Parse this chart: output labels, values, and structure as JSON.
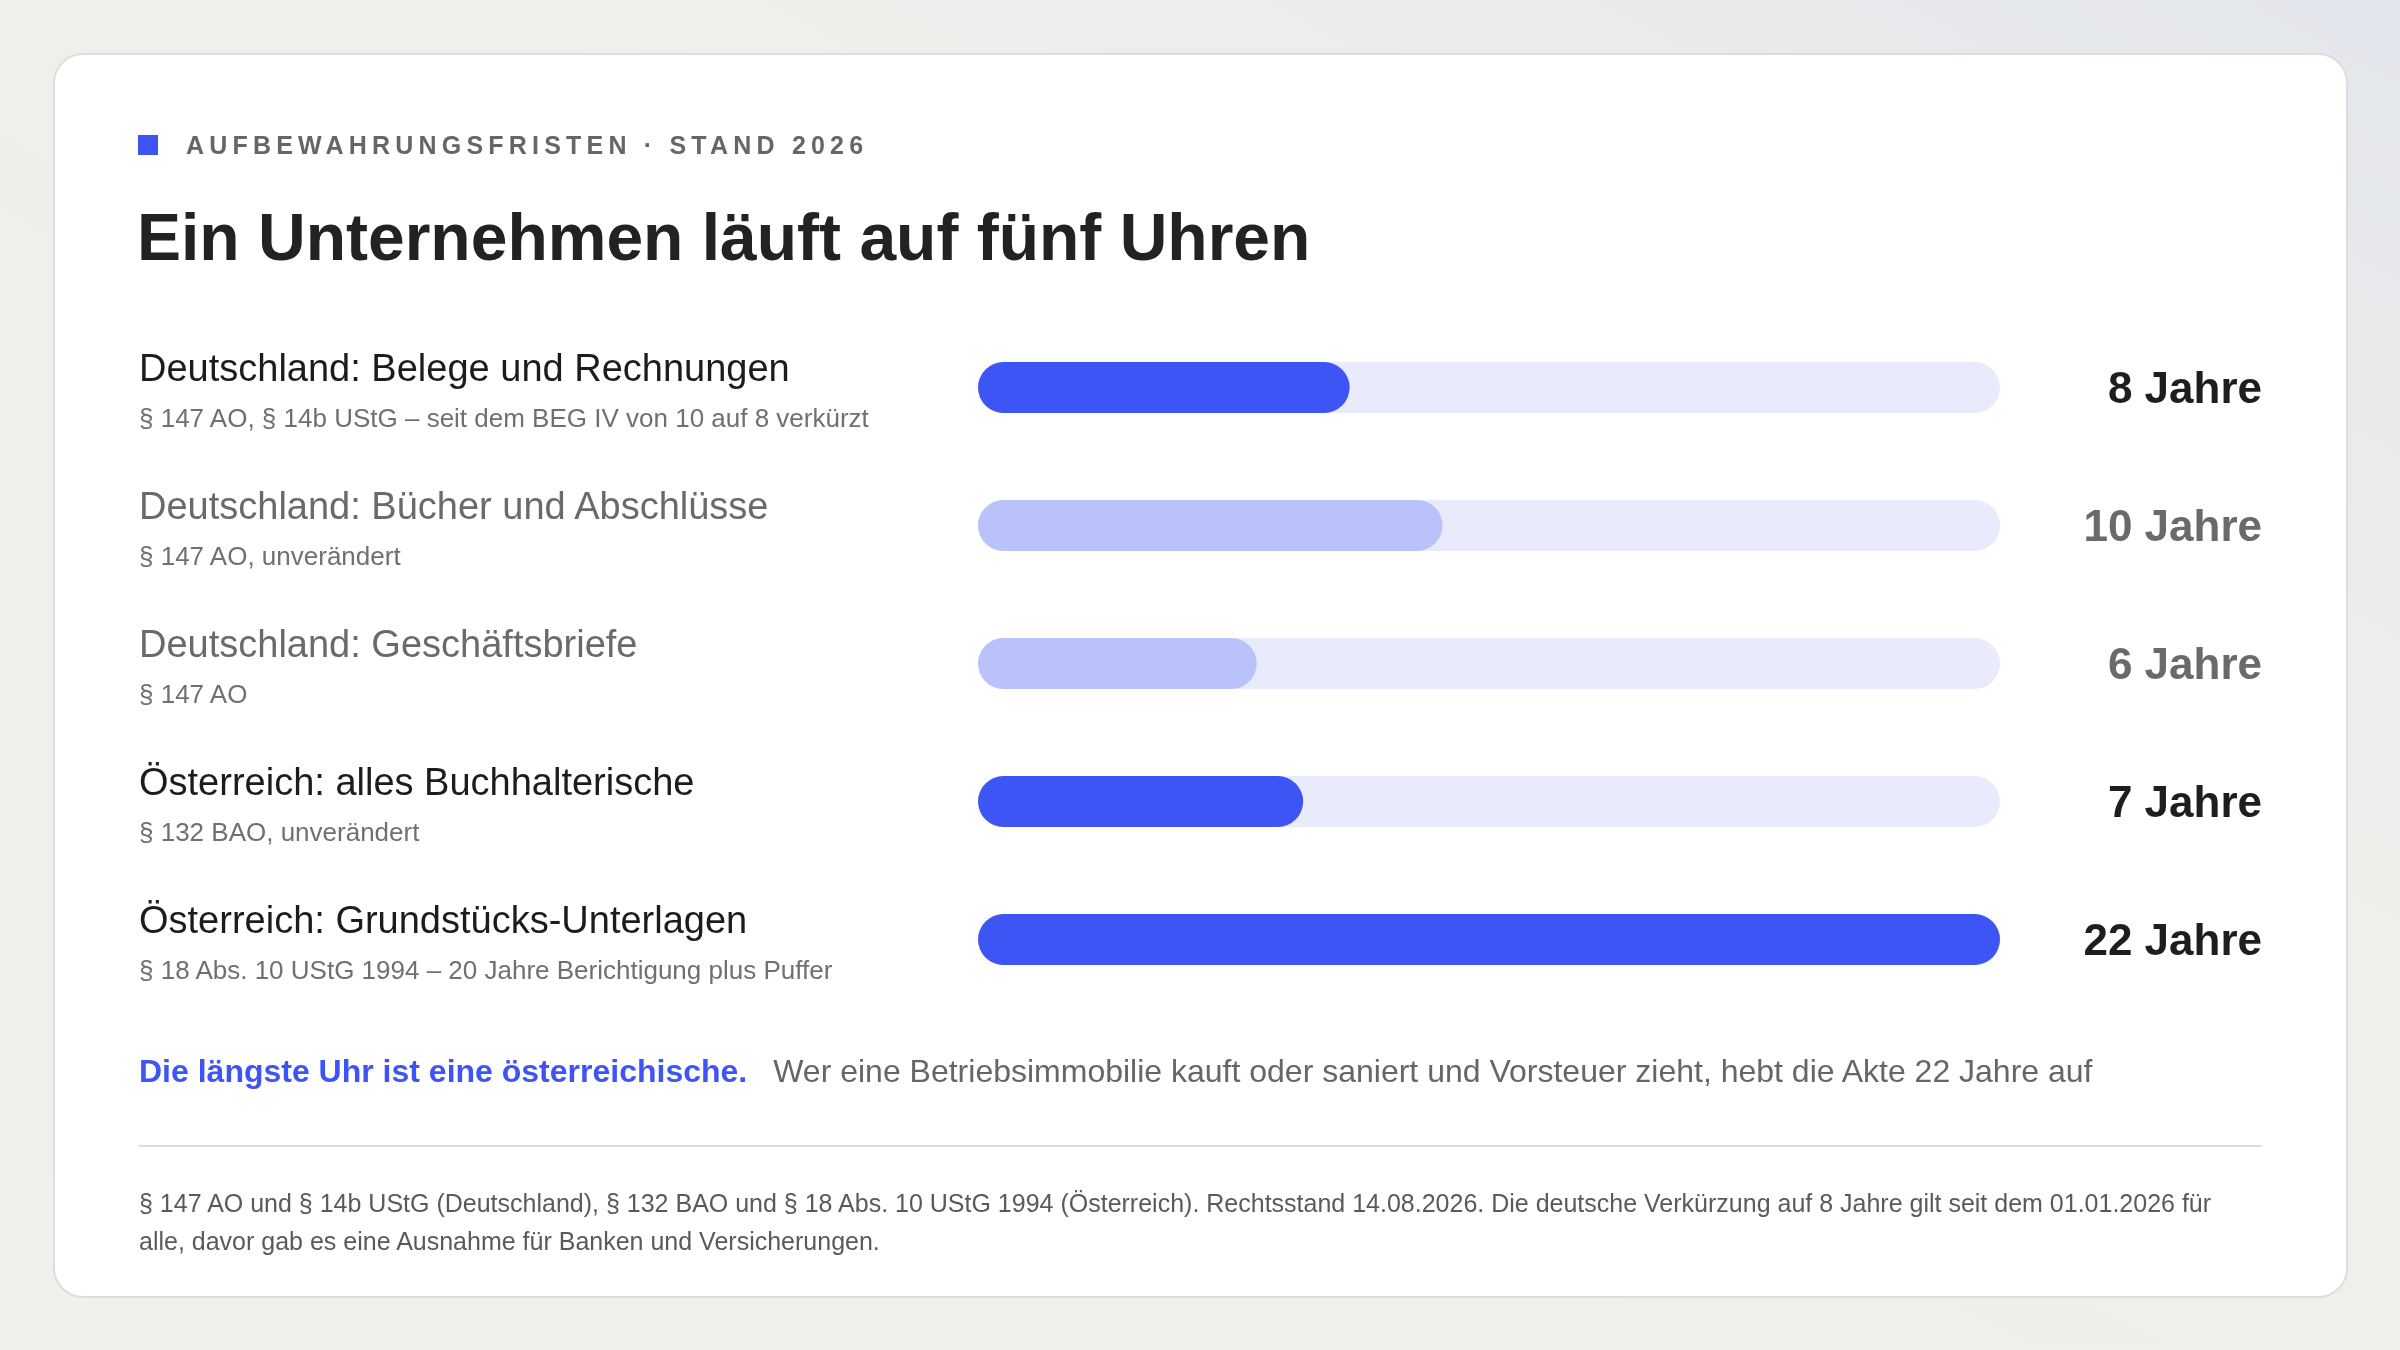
{
  "chart_data": {
    "type": "bar",
    "orientation": "horizontal",
    "subtitle": "AUFBEWAHRUNGSFRISTEN · STAND 2026",
    "title": "Ein Unternehmen läuft auf fünf Uhren",
    "categories": [
      "Deutschland: Belege und Rechnungen\n§ 147 AO, § 14b UStG – seit dem BEG IV von 10 auf 8 verkürzt",
      "Deutschland: Bücher und Abschlüsse\n§ 147 AO, unverändert",
      "Deutschland: Geschäftsbriefe\n§ 147 AO",
      "Österreich: alles Buchhalterische\n§ 132 BAO, unverändert",
      "Österreich: Grundstücks-Unterlagen\n§ 18 Abs. 10 UStG 1994 – 20 Jahre Berichtigung plus Puffer"
    ],
    "values": [
      8,
      10,
      6,
      7,
      22
    ],
    "colors": [
      "#3d55f5",
      "#b9c2fa",
      "#b9c2fa",
      "#3d55f5",
      "#3d55f5"
    ],
    "value_labels": [
      "8 Jahre",
      "10 Jahre",
      "6 Jahre",
      "7 Jahre",
      "22 Jahre"
    ],
    "xlim": [
      0,
      22
    ],
    "tick_labels": "y",
    "annotations": [
      "Die längste Uhr ist eine österreichische.",
      "Wer eine Betriebsimmobilie kauft oder saniert und Vorsteuer zieht, hebt die Akte 22 Jahre auf",
      "§ 147 AO und § 14b UStG (Deutschland), § 132 BAO und § 18 Abs. 10 UStG 1994 (Österreich). Rechtsstand 14.08.2026. Die deutsche Verkürzung auf 8 Jahre gilt seit dem 01.01.2026 für alle, davor gab es eine Ausnahme für Banken und Versicherungen."
    ]
  }
}
